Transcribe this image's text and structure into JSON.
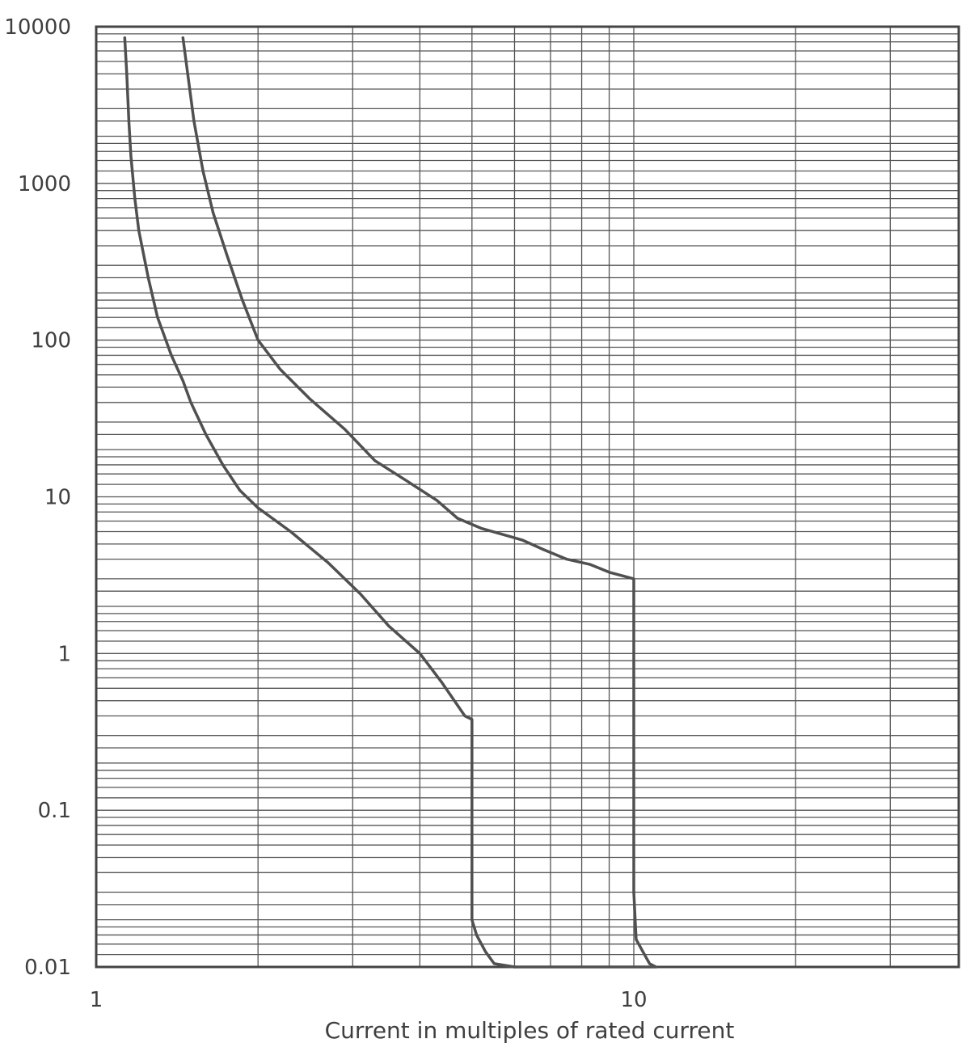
{
  "chart_data": {
    "type": "line",
    "title": "",
    "xlabel": "Current in multiples of rated current",
    "ylabel": "",
    "x_scale": "log",
    "y_scale": "log",
    "xlim": [
      1,
      40
    ],
    "ylim": [
      0.01,
      10000
    ],
    "grid": true,
    "x_ticks": [
      {
        "value": 1,
        "label": "1"
      },
      {
        "value": 10,
        "label": "10"
      }
    ],
    "y_ticks": [
      {
        "value": 10000,
        "label": "10000"
      },
      {
        "value": 1000,
        "label": "1000"
      },
      {
        "value": 100,
        "label": "100"
      },
      {
        "value": 10,
        "label": "10"
      },
      {
        "value": 1,
        "label": "1"
      },
      {
        "value": 0.1,
        "label": "0.1"
      },
      {
        "value": 0.01,
        "label": "0.01"
      }
    ],
    "x_gridlines": [
      1,
      2,
      3,
      4,
      5,
      6,
      7,
      8,
      9,
      10,
      20,
      30
    ],
    "y_minor_multiples": [
      1,
      1.2,
      1.4,
      1.6,
      1.8,
      2,
      2.5,
      3,
      4,
      5,
      6,
      7,
      8,
      9
    ],
    "series": [
      {
        "points": [
          [
            1.13,
            8500
          ],
          [
            1.14,
            5000
          ],
          [
            1.15,
            2500
          ],
          [
            1.16,
            1500
          ],
          [
            1.18,
            800
          ],
          [
            1.2,
            500
          ],
          [
            1.25,
            250
          ],
          [
            1.3,
            140
          ],
          [
            1.38,
            80
          ],
          [
            1.45,
            55
          ],
          [
            1.5,
            40
          ],
          [
            1.6,
            25
          ],
          [
            1.72,
            16
          ],
          [
            1.85,
            11
          ],
          [
            2.0,
            8.5
          ],
          [
            2.3,
            6
          ],
          [
            2.7,
            3.8
          ],
          [
            3.1,
            2.4
          ],
          [
            3.5,
            1.5
          ],
          [
            4.0,
            1.0
          ],
          [
            4.4,
            0.65
          ],
          [
            4.85,
            0.4
          ],
          [
            5.0,
            0.38
          ],
          [
            5.0,
            0.02
          ],
          [
            5.1,
            0.016
          ],
          [
            5.3,
            0.0125
          ],
          [
            5.5,
            0.0105
          ],
          [
            6.0,
            0.01
          ]
        ]
      },
      {
        "points": [
          [
            1.45,
            8500
          ],
          [
            1.48,
            5000
          ],
          [
            1.52,
            2500
          ],
          [
            1.58,
            1200
          ],
          [
            1.65,
            650
          ],
          [
            1.75,
            350
          ],
          [
            1.87,
            180
          ],
          [
            2.0,
            100
          ],
          [
            2.2,
            65
          ],
          [
            2.5,
            42
          ],
          [
            2.9,
            27
          ],
          [
            3.3,
            17
          ],
          [
            3.8,
            12.5
          ],
          [
            4.3,
            9.5
          ],
          [
            4.7,
            7.3
          ],
          [
            5.2,
            6.3
          ],
          [
            6.2,
            5.3
          ],
          [
            6.8,
            4.6
          ],
          [
            7.5,
            4.0
          ],
          [
            8.3,
            3.7
          ],
          [
            9.0,
            3.3
          ],
          [
            10.0,
            3.0
          ],
          [
            10.0,
            0.03
          ],
          [
            10.1,
            0.015
          ],
          [
            10.4,
            0.0125
          ],
          [
            10.7,
            0.0105
          ],
          [
            11.0,
            0.01
          ]
        ]
      },
      {
        "points": [
          [
            6.0,
            0.01
          ],
          [
            11.0,
            0.01
          ]
        ]
      }
    ]
  }
}
